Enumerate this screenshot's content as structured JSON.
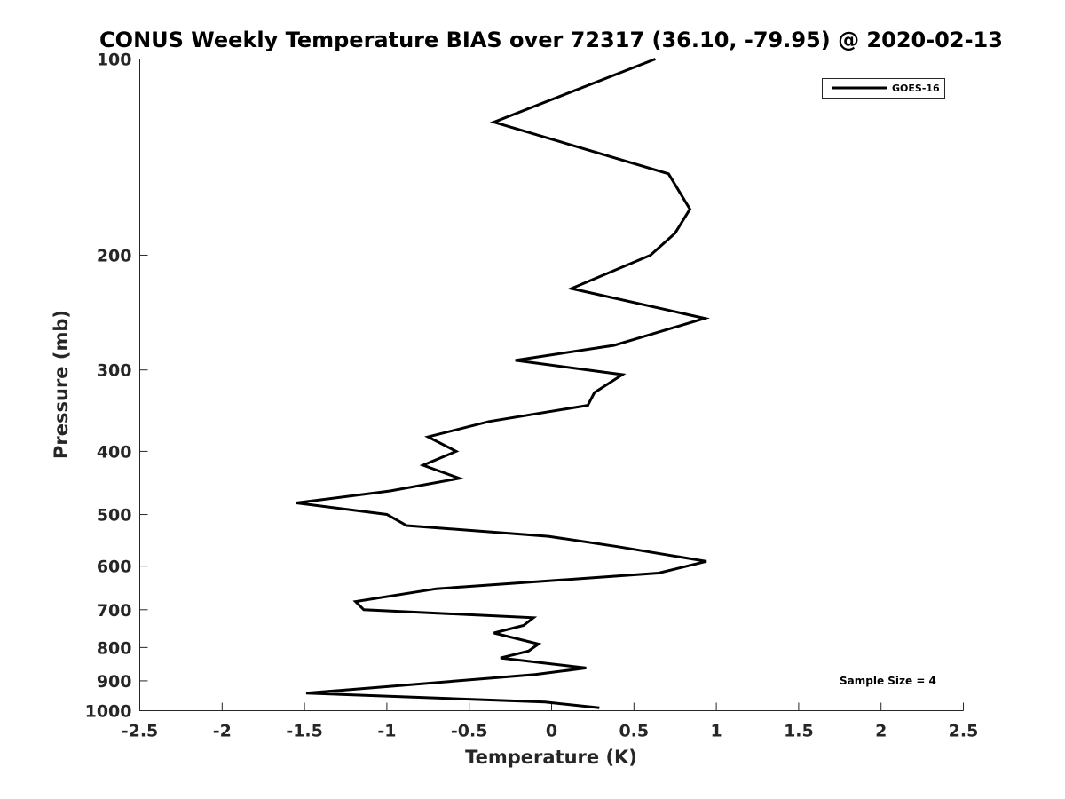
{
  "chart_data": {
    "type": "line",
    "title": "CONUS Weekly Temperature BIAS over 72317 (36.10, -79.95) @ 2020-02-13",
    "xlabel": "Temperature (K)",
    "ylabel": "Pressure (mb)",
    "xlim": [
      -2.5,
      2.5
    ],
    "ylim": [
      100,
      1000
    ],
    "y_scale": "log",
    "y_reversed": true,
    "grid": false,
    "legend_position": "top-right",
    "x_ticks": [
      -2.5,
      -2,
      -1.5,
      -1,
      -0.5,
      0,
      0.5,
      1,
      1.5,
      2,
      2.5
    ],
    "x_tick_labels": [
      "-2.5",
      "-2",
      "-1.5",
      "-1",
      "-0.5",
      "0",
      "0.5",
      "1",
      "1.5",
      "2",
      "2.5"
    ],
    "y_ticks": [
      100,
      200,
      300,
      400,
      500,
      600,
      700,
      800,
      900,
      1000
    ],
    "y_tick_labels": [
      "100",
      "200",
      "300",
      "400",
      "500",
      "600",
      "700",
      "800",
      "900",
      "1000"
    ],
    "series": [
      {
        "name": "GOES-16",
        "color": "#000000",
        "temperature": [
          0.63,
          -0.35,
          0.71,
          0.84,
          0.75,
          0.6,
          0.12,
          0.93,
          0.38,
          -0.22,
          0.43,
          0.26,
          0.22,
          -0.38,
          -0.75,
          -0.58,
          -0.78,
          -0.56,
          -0.98,
          -1.55,
          -1.0,
          -0.88,
          -0.02,
          0.4,
          0.94,
          0.65,
          -0.7,
          -1.19,
          -1.14,
          -0.11,
          -0.17,
          -0.35,
          -0.08,
          -0.14,
          -0.31,
          0.21,
          -0.1,
          -1.49,
          -0.04,
          0.29
        ],
        "pressure": [
          100,
          125,
          150,
          170,
          185,
          200,
          225,
          250,
          275,
          290,
          305,
          325,
          340,
          360,
          380,
          400,
          420,
          440,
          460,
          480,
          500,
          520,
          540,
          560,
          590,
          615,
          650,
          680,
          700,
          720,
          740,
          760,
          790,
          810,
          830,
          860,
          880,
          940,
          970,
          990
        ]
      }
    ],
    "annotations": [
      "Sample Size = 4"
    ]
  }
}
